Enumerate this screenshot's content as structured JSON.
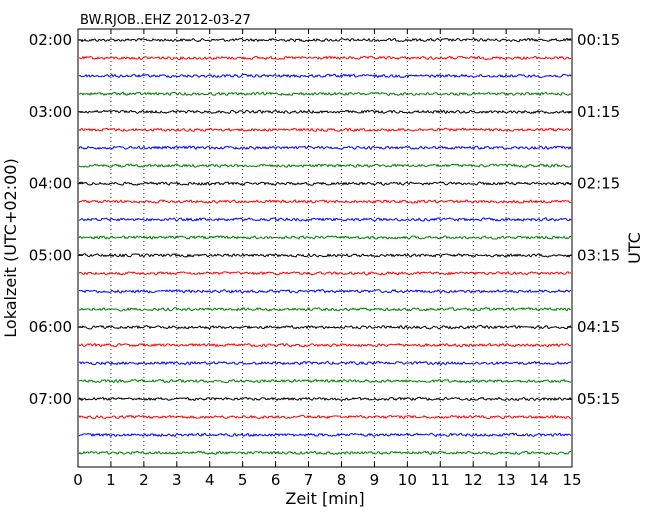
{
  "chart_data": {
    "type": "line",
    "title": "BW.RJOB..EHZ 2012-03-27",
    "xlabel": "Zeit  [min]",
    "ylabel_left": "Lokalzeit (UTC+02:00)",
    "ylabel_right": "UTC",
    "xlim": [
      0,
      15
    ],
    "x_ticks": [
      "0",
      "1",
      "2",
      "3",
      "4",
      "5",
      "6",
      "7",
      "8",
      "9",
      "10",
      "11",
      "12",
      "13",
      "14",
      "15"
    ],
    "vertical_grid": true,
    "left_tick_labels": [
      "02:00",
      "03:00",
      "04:00",
      "05:00",
      "06:00",
      "07:00"
    ],
    "right_tick_labels": [
      "00:15",
      "01:15",
      "02:15",
      "03:15",
      "04:15",
      "05:15"
    ],
    "traces_per_hour": 4,
    "trace_count": 24,
    "trace_colors": [
      "#000000",
      "#ff0000",
      "#0000ff",
      "#008000"
    ]
  }
}
